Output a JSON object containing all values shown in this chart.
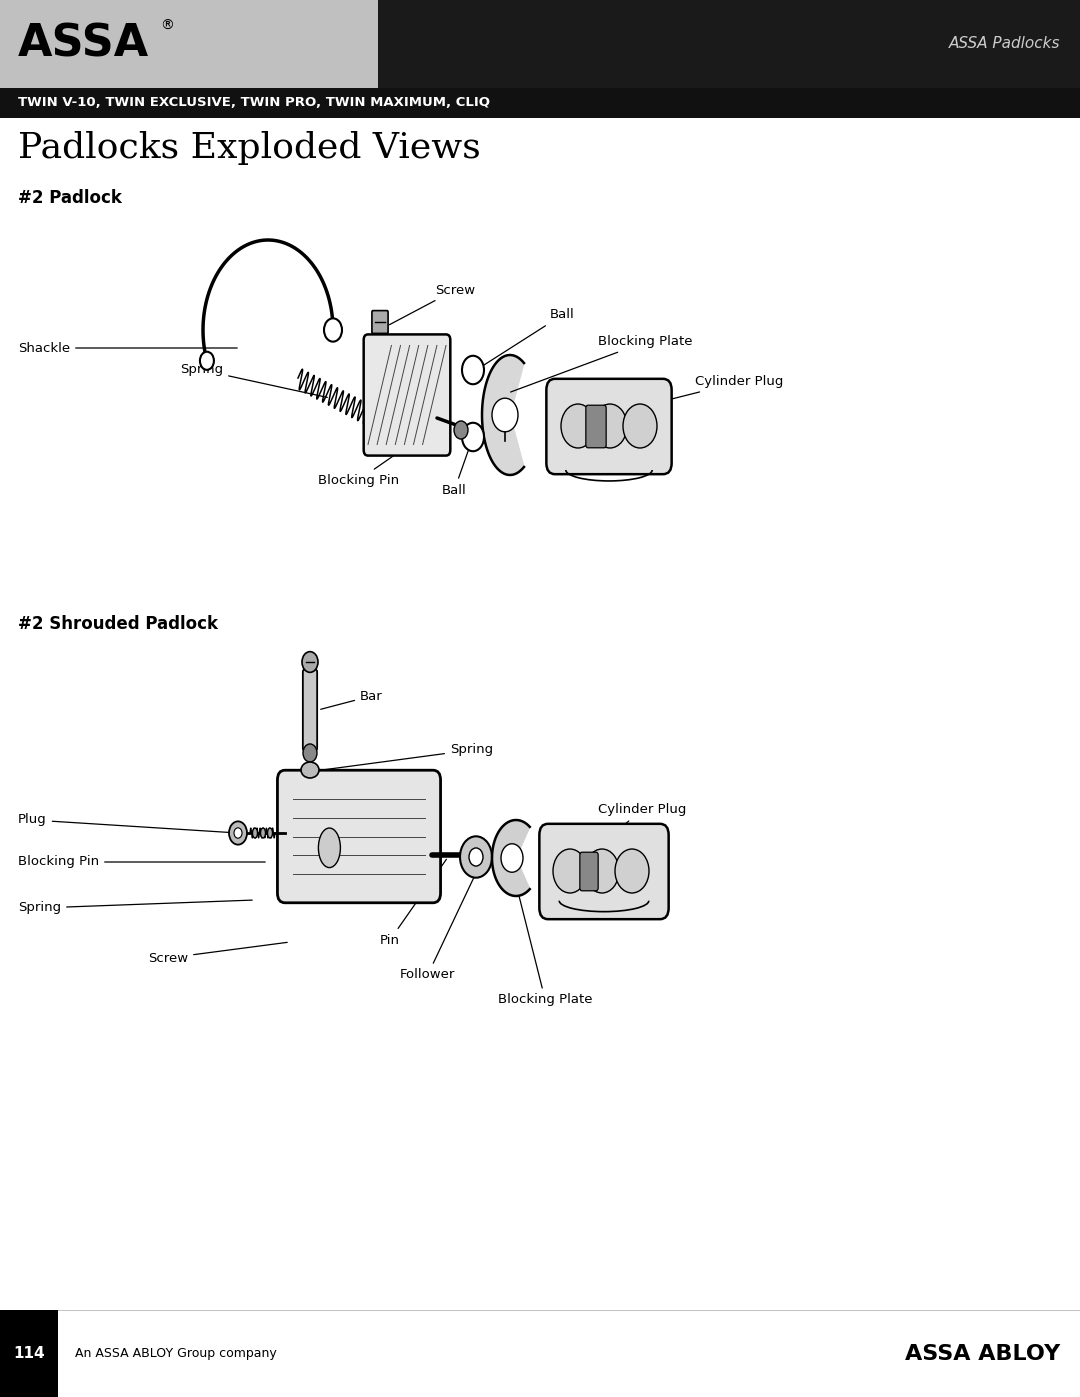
{
  "page_width": 10.8,
  "page_height": 13.97,
  "dpi": 100,
  "bg_color": "#ffffff",
  "header": {
    "assa_logo_text": "ASSA",
    "header_subtitle_right": "ASSA Padlocks",
    "subheader_text": "TWIN V-10, TWIN EXCLUSIVE, TWIN PRO, TWIN MAXIMUM, CLIQ"
  },
  "main_title": "Padlocks Exploded Views",
  "section1_title": "#2 Padlock",
  "section2_title": "#2 Shrouded Padlock",
  "footer_page": "114",
  "footer_text": "An ASSA ABLOY Group company",
  "footer_brand": "ASSA ABLOY"
}
